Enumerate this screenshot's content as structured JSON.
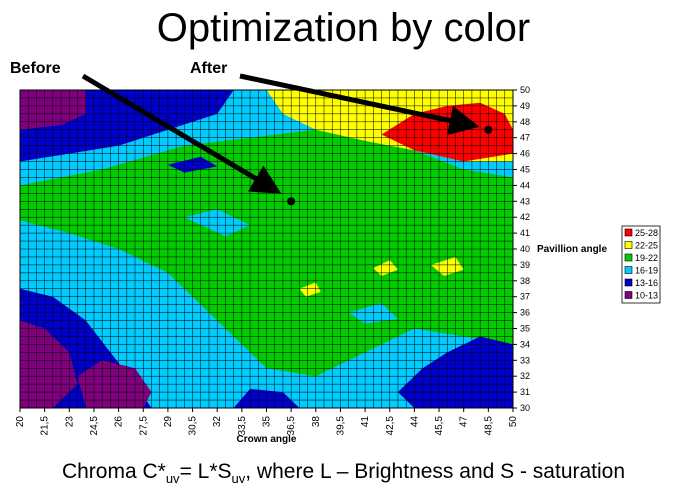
{
  "title": "Optimization by color",
  "annotations": {
    "before": "Before",
    "after": "After"
  },
  "caption": {
    "pre": "Chroma C*",
    "sub1": "uv",
    "mid": "= L*S",
    "sub2": "uv",
    "post": ", where L – Brightness and S - saturation"
  },
  "chart_data": {
    "type": "heatmap",
    "xlabel": "Crown angle",
    "ylabel": "Pavillion angle",
    "xlim": [
      20,
      50
    ],
    "ylim": [
      30,
      50
    ],
    "x_ticks": [
      "20",
      "21,5",
      "23",
      "24,5",
      "26",
      "27,5",
      "29",
      "30,5",
      "32",
      "33,5",
      "35",
      "36,5",
      "38",
      "39,5",
      "41",
      "42,5",
      "44",
      "45,5",
      "47",
      "48,5",
      "50"
    ],
    "y_ticks": [
      "30",
      "31",
      "32",
      "33",
      "34",
      "35",
      "36",
      "37",
      "38",
      "39",
      "40",
      "41",
      "42",
      "43",
      "44",
      "45",
      "46",
      "47",
      "48",
      "49",
      "50"
    ],
    "legend": [
      {
        "label": "25-28",
        "color": "#ff0000"
      },
      {
        "label": "22-25",
        "color": "#ffff00"
      },
      {
        "label": "19-22",
        "color": "#00cc00"
      },
      {
        "label": "16-19",
        "color": "#00ccff"
      },
      {
        "label": "13-16",
        "color": "#0000cc"
      },
      {
        "label": "10-13",
        "color": "#800080"
      }
    ],
    "points": [
      {
        "name": "Before",
        "x": 36.5,
        "y": 43
      },
      {
        "name": "After",
        "x": 48.5,
        "y": 47.5
      }
    ]
  }
}
